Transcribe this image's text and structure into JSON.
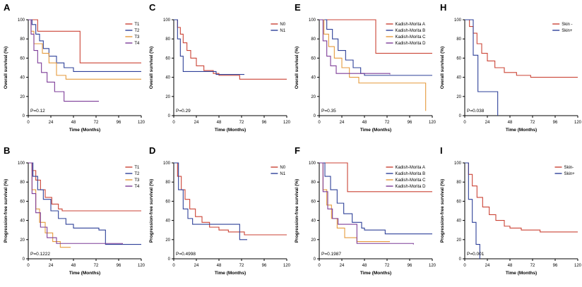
{
  "figure": {
    "name": "Kaplan-Meier survival curves figure"
  },
  "chart_data": [
    {
      "panel": "A",
      "type": "line",
      "subtype": "km-step",
      "xlabel": "Time (Months)",
      "ylabel": "Overall survival (%)",
      "xlim": [
        0,
        120
      ],
      "ylim": [
        0,
        100
      ],
      "xticks": [
        0,
        24,
        48,
        72,
        96,
        120
      ],
      "yticks": [
        0,
        20,
        40,
        60,
        80,
        100
      ],
      "p_value": "P=0.12",
      "legend_position": "top-right",
      "series": [
        {
          "name": "T1",
          "color": "#cb4335",
          "points": [
            [
              0,
              100
            ],
            [
              10,
              88
            ],
            [
              55,
              55
            ],
            [
              120,
              55
            ]
          ]
        },
        {
          "name": "T2",
          "color": "#2e4099",
          "points": [
            [
              0,
              100
            ],
            [
              4,
              95
            ],
            [
              8,
              85
            ],
            [
              12,
              78
            ],
            [
              16,
              70
            ],
            [
              22,
              62
            ],
            [
              30,
              55
            ],
            [
              38,
              50
            ],
            [
              48,
              46
            ],
            [
              120,
              46
            ]
          ]
        },
        {
          "name": "T3",
          "color": "#e59a3c",
          "points": [
            [
              0,
              100
            ],
            [
              3,
              88
            ],
            [
              6,
              75
            ],
            [
              15,
              65
            ],
            [
              22,
              55
            ],
            [
              30,
              42
            ],
            [
              40,
              38
            ],
            [
              120,
              38
            ]
          ]
        },
        {
          "name": "T4",
          "color": "#7d3c98",
          "points": [
            [
              0,
              100
            ],
            [
              3,
              85
            ],
            [
              6,
              68
            ],
            [
              10,
              55
            ],
            [
              14,
              45
            ],
            [
              20,
              35
            ],
            [
              28,
              25
            ],
            [
              38,
              15
            ],
            [
              75,
              15
            ]
          ]
        }
      ]
    },
    {
      "panel": "C",
      "type": "line",
      "subtype": "km-step",
      "xlabel": "Time (Months)",
      "ylabel": "Overall survival (%)",
      "xlim": [
        0,
        120
      ],
      "ylim": [
        0,
        100
      ],
      "xticks": [
        0,
        24,
        48,
        72,
        96,
        120
      ],
      "yticks": [
        0,
        20,
        40,
        60,
        80,
        100
      ],
      "p_value": "P=0.29",
      "legend_position": "top-right",
      "series": [
        {
          "name": "N0",
          "color": "#cb4335",
          "points": [
            [
              0,
              100
            ],
            [
              4,
              92
            ],
            [
              7,
              85
            ],
            [
              10,
              76
            ],
            [
              14,
              68
            ],
            [
              18,
              60
            ],
            [
              24,
              52
            ],
            [
              32,
              47
            ],
            [
              42,
              44
            ],
            [
              48,
              42
            ],
            [
              70,
              38
            ],
            [
              120,
              38
            ]
          ]
        },
        {
          "name": "N1",
          "color": "#2e4099",
          "points": [
            [
              0,
              100
            ],
            [
              4,
              80
            ],
            [
              7,
              62
            ],
            [
              10,
              46
            ],
            [
              45,
              43
            ],
            [
              75,
              43
            ]
          ]
        }
      ]
    },
    {
      "panel": "E",
      "type": "line",
      "subtype": "km-step",
      "xlabel": "Time (Months)",
      "ylabel": "Overall survival (%)",
      "xlim": [
        0,
        120
      ],
      "ylim": [
        0,
        100
      ],
      "xticks": [
        0,
        24,
        48,
        72,
        96,
        120
      ],
      "yticks": [
        0,
        20,
        40,
        60,
        80,
        100
      ],
      "p_value": "P=0.35",
      "legend_position": "top-right",
      "series": [
        {
          "name": "Kadish-Morita A",
          "color": "#cb4335",
          "points": [
            [
              0,
              100
            ],
            [
              60,
              65
            ],
            [
              120,
              65
            ]
          ]
        },
        {
          "name": "Kadish-Morita B",
          "color": "#2e4099",
          "points": [
            [
              0,
              100
            ],
            [
              8,
              90
            ],
            [
              14,
              80
            ],
            [
              20,
              68
            ],
            [
              28,
              58
            ],
            [
              36,
              50
            ],
            [
              44,
              44
            ],
            [
              48,
              42
            ],
            [
              120,
              42
            ]
          ]
        },
        {
          "name": "Kadish-Morita C",
          "color": "#e59a3c",
          "points": [
            [
              0,
              100
            ],
            [
              5,
              85
            ],
            [
              10,
              72
            ],
            [
              16,
              60
            ],
            [
              24,
              50
            ],
            [
              32,
              40
            ],
            [
              42,
              34
            ],
            [
              110,
              34
            ],
            [
              113,
              5
            ]
          ]
        },
        {
          "name": "Kadish-Morita D",
          "color": "#7d3c98",
          "points": [
            [
              0,
              100
            ],
            [
              4,
              78
            ],
            [
              8,
              62
            ],
            [
              12,
              52
            ],
            [
              18,
              44
            ],
            [
              75,
              43
            ]
          ]
        }
      ]
    },
    {
      "panel": "H",
      "type": "line",
      "subtype": "km-step",
      "xlabel": "Time (Months)",
      "ylabel": "Overall survival (%)",
      "xlim": [
        0,
        120
      ],
      "ylim": [
        0,
        100
      ],
      "xticks": [
        0,
        24,
        48,
        72,
        96,
        120
      ],
      "yticks": [
        0,
        20,
        40,
        60,
        80,
        100
      ],
      "p_value": "P=0.038",
      "legend_position": "top-right",
      "series": [
        {
          "name": "Skin -",
          "color": "#cb4335",
          "points": [
            [
              0,
              100
            ],
            [
              5,
              93
            ],
            [
              9,
              86
            ],
            [
              13,
              75
            ],
            [
              18,
              65
            ],
            [
              24,
              57
            ],
            [
              32,
              50
            ],
            [
              42,
              45
            ],
            [
              55,
              42
            ],
            [
              70,
              40
            ],
            [
              120,
              40
            ]
          ]
        },
        {
          "name": "Skin+",
          "color": "#2e4099",
          "points": [
            [
              0,
              100
            ],
            [
              9,
              63
            ],
            [
              14,
              25
            ],
            [
              35,
              0
            ]
          ]
        }
      ]
    },
    {
      "panel": "B",
      "type": "line",
      "subtype": "km-step",
      "xlabel": "Time (Months)",
      "ylabel": "Progression-free survival (%)",
      "xlim": [
        0,
        120
      ],
      "ylim": [
        0,
        100
      ],
      "xticks": [
        0,
        24,
        48,
        72,
        96,
        120
      ],
      "yticks": [
        0,
        20,
        40,
        60,
        80,
        100
      ],
      "p_value": "P=0.1222",
      "legend_position": "top-right",
      "series": [
        {
          "name": "T1",
          "color": "#cb4335",
          "points": [
            [
              0,
              100
            ],
            [
              4,
              92
            ],
            [
              8,
              82
            ],
            [
              13,
              72
            ],
            [
              18,
              64
            ],
            [
              25,
              57
            ],
            [
              32,
              52
            ],
            [
              36,
              50
            ],
            [
              120,
              50
            ]
          ]
        },
        {
          "name": "T2",
          "color": "#2e4099",
          "points": [
            [
              0,
              100
            ],
            [
              5,
              86
            ],
            [
              10,
              72
            ],
            [
              16,
              62
            ],
            [
              24,
              50
            ],
            [
              32,
              42
            ],
            [
              40,
              36
            ],
            [
              48,
              32
            ],
            [
              75,
              30
            ],
            [
              82,
              15
            ],
            [
              120,
              15
            ]
          ]
        },
        {
          "name": "T3",
          "color": "#e59a3c",
          "points": [
            [
              0,
              100
            ],
            [
              4,
              72
            ],
            [
              8,
              52
            ],
            [
              12,
              38
            ],
            [
              18,
              27
            ],
            [
              26,
              18
            ],
            [
              34,
              12
            ],
            [
              45,
              12
            ]
          ]
        },
        {
          "name": "T4",
          "color": "#7d3c98",
          "points": [
            [
              0,
              100
            ],
            [
              4,
              68
            ],
            [
              8,
              48
            ],
            [
              13,
              33
            ],
            [
              20,
              22
            ],
            [
              30,
              16
            ],
            [
              100,
              15
            ]
          ]
        }
      ]
    },
    {
      "panel": "D",
      "type": "line",
      "subtype": "km-step",
      "xlabel": "Time (Months)",
      "ylabel": "Progression-free survival (%)",
      "xlim": [
        0,
        120
      ],
      "ylim": [
        0,
        100
      ],
      "xticks": [
        0,
        24,
        48,
        72,
        96,
        120
      ],
      "yticks": [
        0,
        20,
        40,
        60,
        80,
        100
      ],
      "p_value": "P=0.4998",
      "legend_position": "top-right",
      "series": [
        {
          "name": "N0",
          "color": "#cb4335",
          "points": [
            [
              0,
              100
            ],
            [
              4,
              86
            ],
            [
              8,
              72
            ],
            [
              12,
              62
            ],
            [
              17,
              52
            ],
            [
              23,
              44
            ],
            [
              30,
              38
            ],
            [
              38,
              33
            ],
            [
              48,
              30
            ],
            [
              58,
              28
            ],
            [
              75,
              25
            ],
            [
              120,
              25
            ]
          ]
        },
        {
          "name": "N1",
          "color": "#2e4099",
          "points": [
            [
              0,
              100
            ],
            [
              5,
              72
            ],
            [
              10,
              52
            ],
            [
              15,
              42
            ],
            [
              20,
              36
            ],
            [
              62,
              36
            ],
            [
              70,
              20
            ],
            [
              78,
              20
            ]
          ]
        }
      ]
    },
    {
      "panel": "F",
      "type": "line",
      "subtype": "km-step",
      "xlabel": "Time (Months)",
      "ylabel": "Progression-free survival (%)",
      "xlim": [
        0,
        120
      ],
      "ylim": [
        0,
        100
      ],
      "xticks": [
        0,
        24,
        48,
        72,
        96,
        120
      ],
      "yticks": [
        0,
        20,
        40,
        60,
        80,
        100
      ],
      "p_value": "P=0.1987",
      "legend_position": "top-right",
      "series": [
        {
          "name": "Kadish-Morita A",
          "color": "#cb4335",
          "points": [
            [
              0,
              100
            ],
            [
              30,
              70
            ],
            [
              120,
              70
            ]
          ]
        },
        {
          "name": "Kadish-Morita B",
          "color": "#2e4099",
          "points": [
            [
              0,
              100
            ],
            [
              6,
              86
            ],
            [
              12,
              72
            ],
            [
              19,
              58
            ],
            [
              26,
              47
            ],
            [
              35,
              38
            ],
            [
              45,
              32
            ],
            [
              48,
              30
            ],
            [
              70,
              26
            ],
            [
              120,
              26
            ]
          ]
        },
        {
          "name": "Kadish-Morita C",
          "color": "#e59a3c",
          "points": [
            [
              0,
              100
            ],
            [
              4,
              72
            ],
            [
              8,
              56
            ],
            [
              13,
              42
            ],
            [
              19,
              32
            ],
            [
              27,
              22
            ],
            [
              40,
              18
            ],
            [
              75,
              18
            ]
          ]
        },
        {
          "name": "Kadish-Morita D",
          "color": "#7d3c98",
          "points": [
            [
              0,
              100
            ],
            [
              4,
              70
            ],
            [
              9,
              52
            ],
            [
              14,
              42
            ],
            [
              20,
              36
            ],
            [
              40,
              16
            ],
            [
              100,
              15
            ]
          ]
        }
      ]
    },
    {
      "panel": "I",
      "type": "line",
      "subtype": "km-step",
      "xlabel": "Time (Months)",
      "ylabel": "Progression-free survival (%)",
      "xlim": [
        0,
        120
      ],
      "ylim": [
        0,
        100
      ],
      "xticks": [
        0,
        24,
        48,
        72,
        96,
        120
      ],
      "yticks": [
        0,
        20,
        40,
        60,
        80,
        100
      ],
      "p_value": "P=0.001",
      "legend_position": "top-right",
      "series": [
        {
          "name": "Skin-",
          "color": "#cb4335",
          "points": [
            [
              0,
              100
            ],
            [
              4,
              88
            ],
            [
              8,
              76
            ],
            [
              13,
              64
            ],
            [
              19,
              54
            ],
            [
              26,
              46
            ],
            [
              33,
              40
            ],
            [
              42,
              34
            ],
            [
              48,
              32
            ],
            [
              60,
              30
            ],
            [
              80,
              28
            ],
            [
              120,
              28
            ]
          ]
        },
        {
          "name": "Skin+",
          "color": "#2e4099",
          "points": [
            [
              0,
              100
            ],
            [
              4,
              62
            ],
            [
              8,
              38
            ],
            [
              12,
              15
            ],
            [
              16,
              0
            ]
          ]
        }
      ]
    }
  ]
}
